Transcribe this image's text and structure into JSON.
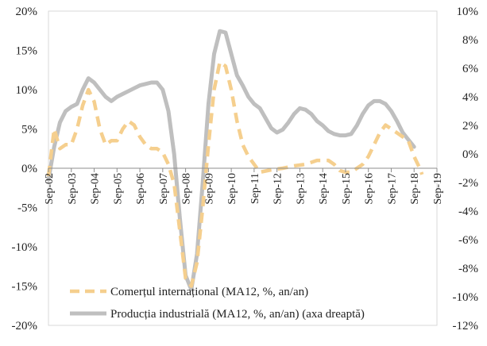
{
  "chart_data": {
    "type": "line",
    "x_labels": [
      "Sep-02",
      "Sep-03",
      "Sep-04",
      "Sep-05",
      "Sep-06",
      "Sep-07",
      "Sep-08",
      "Sep-09",
      "Sep-10",
      "Sep-11",
      "Sep-12",
      "Sep-13",
      "Sep-14",
      "Sep-15",
      "Sep-16",
      "Sep-17",
      "Sep-18",
      "Sep-19"
    ],
    "y_left": {
      "ticks": [
        "20%",
        "15%",
        "10%",
        "5%",
        "0%",
        "-5%",
        "-10%",
        "-15%",
        "-20%"
      ],
      "range": [
        -20,
        20
      ]
    },
    "y_right": {
      "ticks": [
        "10%",
        "8%",
        "6%",
        "4%",
        "2%",
        "0%",
        "-2%",
        "-4%",
        "-6%",
        "-8%",
        "-10%",
        "-12%"
      ],
      "range": [
        -12,
        10
      ]
    },
    "legend_position": "bottom-center",
    "series": [
      {
        "name": "Comerțul internațional (MA12, %, an/an)",
        "axis": "left",
        "color": "#f5cf8e",
        "style": "dashed",
        "points": [
          [
            2002.75,
            -1.0
          ],
          [
            2003.0,
            5.0
          ],
          [
            2003.25,
            2.5
          ],
          [
            2003.5,
            3.0
          ],
          [
            2003.75,
            3.0
          ],
          [
            2004.0,
            5.0
          ],
          [
            2004.25,
            8.0
          ],
          [
            2004.5,
            10.0
          ],
          [
            2004.75,
            8.5
          ],
          [
            2005.0,
            5.0
          ],
          [
            2005.25,
            3.0
          ],
          [
            2005.5,
            3.5
          ],
          [
            2005.75,
            3.5
          ],
          [
            2006.0,
            5.0
          ],
          [
            2006.25,
            6.0
          ],
          [
            2006.5,
            5.5
          ],
          [
            2006.75,
            4.0
          ],
          [
            2007.0,
            3.0
          ],
          [
            2007.25,
            2.5
          ],
          [
            2007.5,
            2.5
          ],
          [
            2007.75,
            2.0
          ],
          [
            2008.0,
            0.5
          ],
          [
            2008.25,
            -2.0
          ],
          [
            2008.5,
            -8.0
          ],
          [
            2008.75,
            -14.0
          ],
          [
            2009.0,
            -15.0
          ],
          [
            2009.25,
            -12.0
          ],
          [
            2009.5,
            -5.0
          ],
          [
            2009.75,
            3.0
          ],
          [
            2010.0,
            10.0
          ],
          [
            2010.25,
            13.5
          ],
          [
            2010.5,
            13.0
          ],
          [
            2010.75,
            10.0
          ],
          [
            2011.0,
            6.0
          ],
          [
            2011.25,
            3.0
          ],
          [
            2011.5,
            1.5
          ],
          [
            2011.75,
            0.5
          ],
          [
            2012.0,
            -0.5
          ],
          [
            2012.5,
            -0.2
          ],
          [
            2013.0,
            0.0
          ],
          [
            2013.5,
            0.3
          ],
          [
            2014.0,
            0.5
          ],
          [
            2014.5,
            1.0
          ],
          [
            2015.0,
            1.0
          ],
          [
            2015.25,
            0.5
          ],
          [
            2015.5,
            -0.3
          ],
          [
            2015.75,
            -0.5
          ],
          [
            2016.0,
            -0.5
          ],
          [
            2016.25,
            0.0
          ],
          [
            2016.5,
            0.5
          ],
          [
            2016.75,
            1.5
          ],
          [
            2017.0,
            3.0
          ],
          [
            2017.25,
            4.5
          ],
          [
            2017.5,
            5.5
          ],
          [
            2017.75,
            5.0
          ],
          [
            2018.0,
            4.5
          ],
          [
            2018.25,
            4.0
          ],
          [
            2018.5,
            3.5
          ],
          [
            2018.75,
            1.5
          ],
          [
            2019.0,
            0.0
          ],
          [
            2019.1,
            -0.8
          ]
        ]
      },
      {
        "name": "Producția industrială (MA12, %, an/an) (axa dreaptă)",
        "axis": "right",
        "color": "#bfbfbf",
        "style": "solid",
        "points": [
          [
            2002.75,
            -1.8
          ],
          [
            2003.0,
            0.5
          ],
          [
            2003.25,
            2.2
          ],
          [
            2003.5,
            3.0
          ],
          [
            2003.75,
            3.3
          ],
          [
            2004.0,
            3.5
          ],
          [
            2004.25,
            4.5
          ],
          [
            2004.5,
            5.3
          ],
          [
            2004.75,
            5.0
          ],
          [
            2005.0,
            4.5
          ],
          [
            2005.25,
            4.0
          ],
          [
            2005.5,
            3.7
          ],
          [
            2005.75,
            4.0
          ],
          [
            2006.0,
            4.2
          ],
          [
            2006.25,
            4.4
          ],
          [
            2006.5,
            4.6
          ],
          [
            2006.75,
            4.8
          ],
          [
            2007.0,
            4.9
          ],
          [
            2007.25,
            5.0
          ],
          [
            2007.5,
            5.0
          ],
          [
            2007.75,
            4.5
          ],
          [
            2008.0,
            3.0
          ],
          [
            2008.25,
            0.0
          ],
          [
            2008.5,
            -4.5
          ],
          [
            2008.75,
            -8.5
          ],
          [
            2009.0,
            -9.5
          ],
          [
            2009.25,
            -7.0
          ],
          [
            2009.5,
            -2.0
          ],
          [
            2009.75,
            3.5
          ],
          [
            2010.0,
            7.0
          ],
          [
            2010.25,
            8.6
          ],
          [
            2010.5,
            8.5
          ],
          [
            2010.75,
            7.0
          ],
          [
            2011.0,
            5.5
          ],
          [
            2011.25,
            4.8
          ],
          [
            2011.5,
            4.0
          ],
          [
            2011.75,
            3.5
          ],
          [
            2012.0,
            3.2
          ],
          [
            2012.25,
            2.5
          ],
          [
            2012.5,
            1.8
          ],
          [
            2012.75,
            1.5
          ],
          [
            2013.0,
            1.7
          ],
          [
            2013.25,
            2.2
          ],
          [
            2013.5,
            2.8
          ],
          [
            2013.75,
            3.2
          ],
          [
            2014.0,
            3.1
          ],
          [
            2014.25,
            2.8
          ],
          [
            2014.5,
            2.3
          ],
          [
            2014.75,
            2.0
          ],
          [
            2015.0,
            1.6
          ],
          [
            2015.25,
            1.4
          ],
          [
            2015.5,
            1.3
          ],
          [
            2015.75,
            1.3
          ],
          [
            2016.0,
            1.4
          ],
          [
            2016.25,
            2.0
          ],
          [
            2016.5,
            2.8
          ],
          [
            2016.75,
            3.4
          ],
          [
            2017.0,
            3.7
          ],
          [
            2017.25,
            3.7
          ],
          [
            2017.5,
            3.5
          ],
          [
            2017.75,
            3.0
          ],
          [
            2018.0,
            2.3
          ],
          [
            2018.25,
            1.5
          ],
          [
            2018.5,
            1.0
          ],
          [
            2018.75,
            0.5
          ]
        ]
      }
    ]
  }
}
